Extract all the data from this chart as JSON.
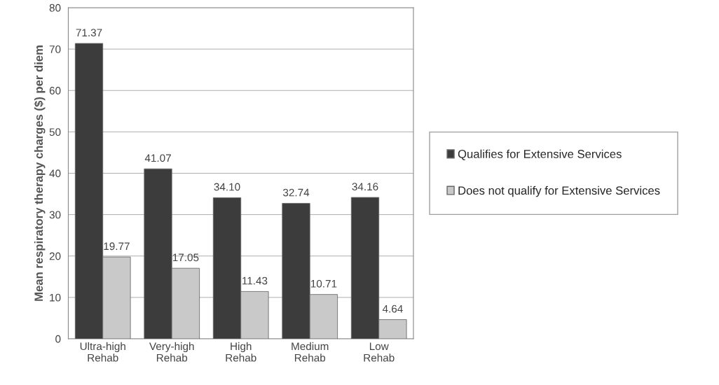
{
  "chart_data": {
    "type": "bar",
    "ylabel": "Mean respiratory therapy charges ($) per diem",
    "categories": [
      "Ultra-high\nRehab",
      "Very-high\nRehab",
      "High\nRehab",
      "Medium\nRehab",
      "Low\nRehab"
    ],
    "series": [
      {
        "name": "Qualifies for Extensive Services",
        "color": "#3c3c3c",
        "values": [
          71.37,
          41.07,
          34.1,
          32.74,
          34.16
        ],
        "value_labels": [
          "71.37",
          "41.07",
          "34.10",
          "32.74",
          "34.16"
        ]
      },
      {
        "name": "Does not qualify for Extensive Services",
        "color": "#c9c9c9",
        "values": [
          19.77,
          17.05,
          11.43,
          10.71,
          4.64
        ],
        "value_labels": [
          "19.77",
          "17.05",
          "11.43",
          "10.71",
          "4.64"
        ]
      }
    ],
    "ylim": [
      0,
      80
    ],
    "yticks": [
      0,
      10,
      20,
      30,
      40,
      50,
      60,
      70,
      80
    ],
    "grid": "y",
    "legend": "right"
  }
}
